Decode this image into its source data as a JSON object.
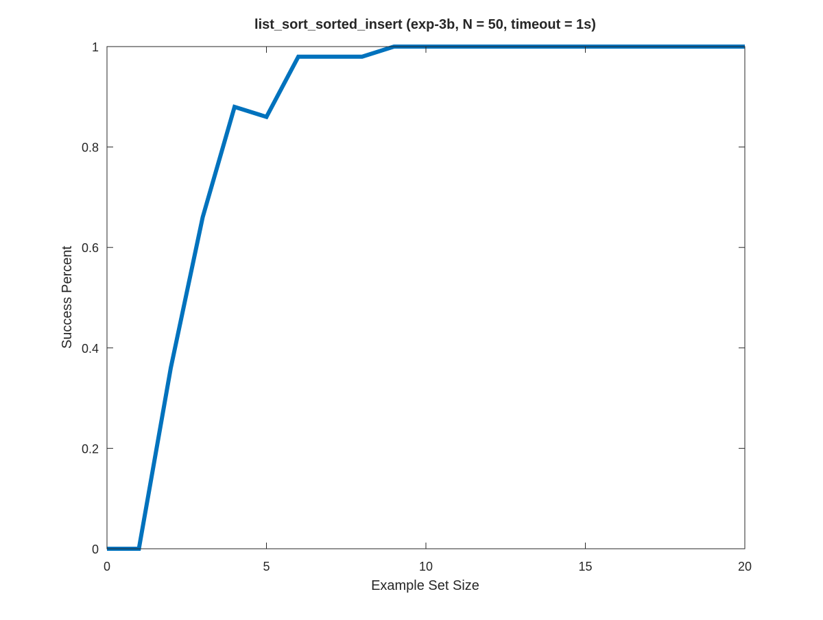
{
  "chart_data": {
    "type": "line",
    "title": "list_sort_sorted_insert (exp-3b, N = 50, timeout = 1s)",
    "xlabel": "Example Set Size",
    "ylabel": "Success Percent",
    "xlim": [
      0,
      20
    ],
    "ylim": [
      0,
      1
    ],
    "xticks": [
      0,
      5,
      10,
      15,
      20
    ],
    "xtick_labels": [
      "0",
      "5",
      "10",
      "15",
      "20"
    ],
    "yticks": [
      0,
      0.2,
      0.4,
      0.6,
      0.8,
      1
    ],
    "ytick_labels": [
      "0",
      "0.2",
      "0.4",
      "0.6",
      "0.8",
      "1"
    ],
    "grid": false,
    "legend": "none",
    "series": [
      {
        "color": "#0072bd",
        "x": [
          0,
          1,
          2,
          3,
          4,
          5,
          6,
          7,
          8,
          9,
          10,
          11,
          12,
          13,
          14,
          15,
          16,
          17,
          18,
          19,
          20
        ],
        "y": [
          0,
          0,
          0.36,
          0.66,
          0.88,
          0.86,
          0.98,
          0.98,
          0.98,
          1,
          1,
          1,
          1,
          1,
          1,
          1,
          1,
          1,
          1,
          1,
          1
        ]
      }
    ]
  }
}
